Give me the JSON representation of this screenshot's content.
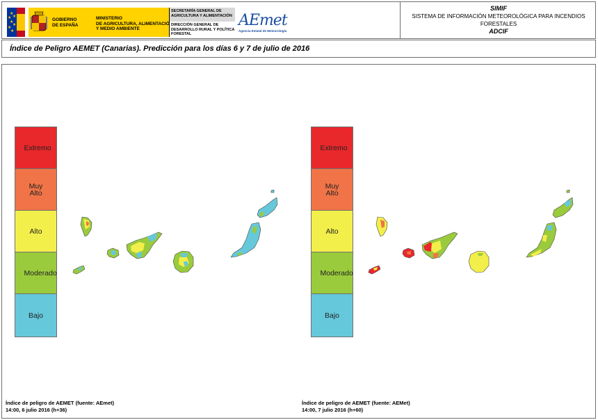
{
  "header": {
    "gov_left": [
      "GOBIERNO",
      "DE ESPAÑA"
    ],
    "gov_ministry": [
      "MINISTERIO",
      "DE AGRICULTURA, ALIMENTACIÓN",
      "Y MEDIO AMBIENTE"
    ],
    "gov_secretaria": [
      "SECRETARÍA GENERAL DE",
      "AGRICULTURA Y ALIMENTACIÓN"
    ],
    "gov_direccion": [
      "DIRECCIÓN GENERAL DE",
      "DESARROLLO RURAL Y POLÍTICA",
      "FORESTAL"
    ],
    "aemet_logo": "AEmet",
    "aemet_sub": "Agencia Estatal de Meteorología",
    "system_code": "SIMIF",
    "system_name_1": "SISTEMA DE INFORMACIÓN METEOROLÓGICA PARA INCENDIOS",
    "system_name_2": "FORESTALES",
    "subsystem": "ADCIF"
  },
  "title": "Índice de Peligro AEMET (Canarias). Predicción para los días 6 y 7 de julio de 2016",
  "legend": {
    "levels": [
      {
        "label": "Extremo",
        "color": "#e8282b"
      },
      {
        "label": "Muy Alto",
        "color": "#f07447"
      },
      {
        "label": "Alto",
        "color": "#f3ef4a"
      },
      {
        "label": "Moderado",
        "color": "#9acb3c"
      },
      {
        "label": "Bajo",
        "color": "#66c8db"
      }
    ]
  },
  "maps": [
    {
      "footnote_1": "Índice de peligro de AEMET (fuente: AEmet)",
      "footnote_2": "14:00, 6 julio 2016 (h+36)"
    },
    {
      "footnote_1": "Índice de peligro de AEMET (fuente: AEMet)",
      "footnote_2": "14:00, 7 julio 2016 (h+60)"
    }
  ]
}
